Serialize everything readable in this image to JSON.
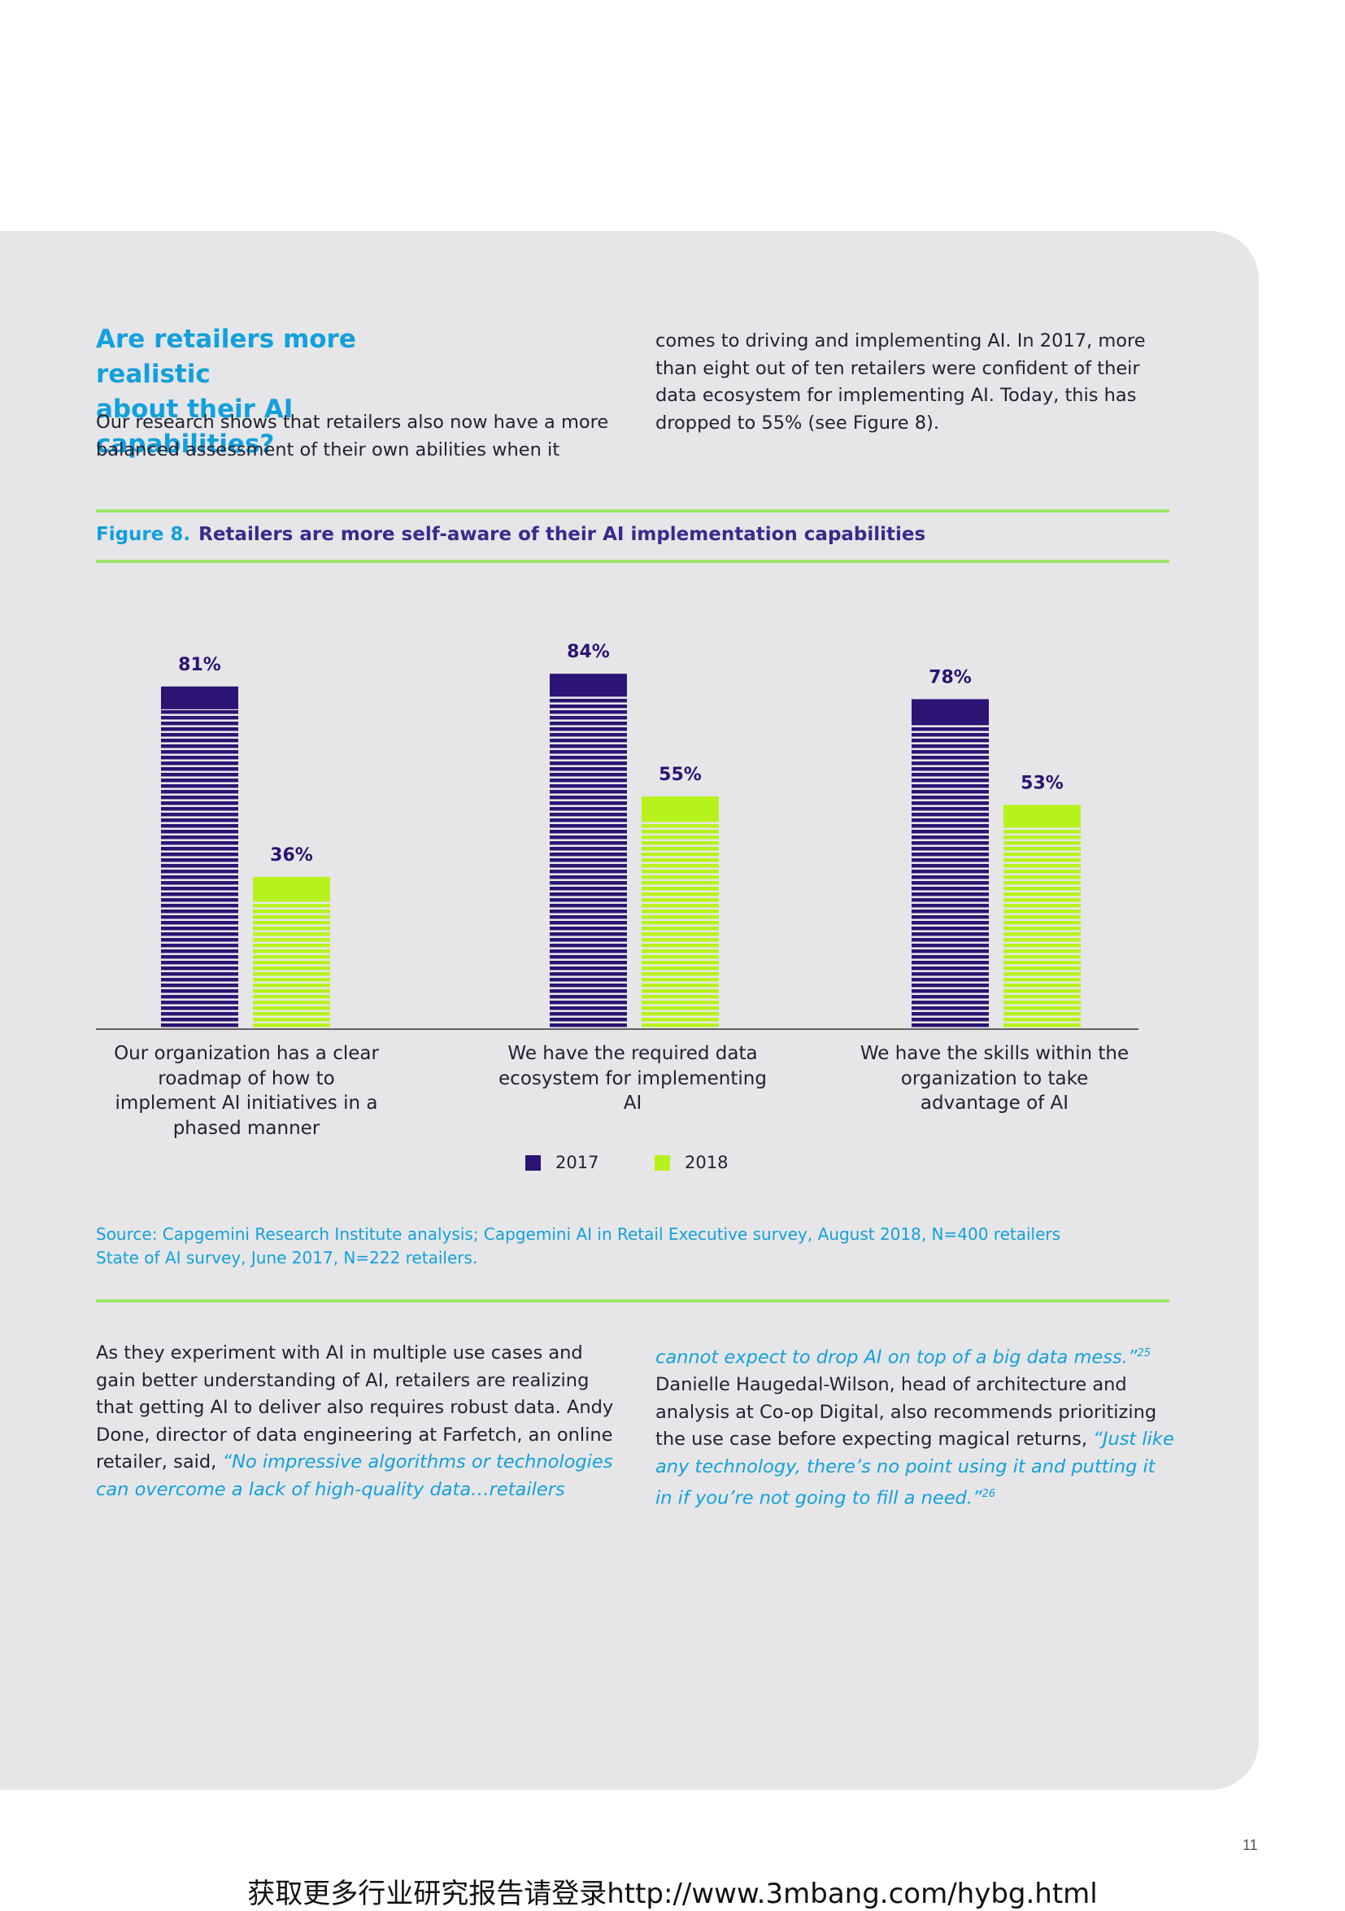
{
  "heading": {
    "line1": "Are retailers more realistic",
    "line2": "about their AI capabilities?"
  },
  "intro": {
    "left": "Our research shows that retailers also now have a more balanced assessment of their own abilities when it",
    "right": "comes to driving and implementing AI. In 2017, more than eight out of ten retailers were confident of their data ecosystem for implementing AI. Today, this has dropped to 55% (see Figure 8)."
  },
  "figure": {
    "label": "Figure 8.",
    "title": "Retailers are more self-aware of their AI implementation capabilities"
  },
  "chart_data": {
    "type": "bar",
    "categories": [
      "Our organization has a clear roadmap of how to implement AI initiatives in a phased manner",
      "We have the required data ecosystem for implementing AI",
      "We have the skills within the organization to take advantage of AI"
    ],
    "series": [
      {
        "name": "2017",
        "values": [
          81,
          84,
          78
        ],
        "color": "#2b1473"
      },
      {
        "name": "2018",
        "values": [
          36,
          55,
          53
        ],
        "color": "#b6f21c"
      }
    ],
    "value_labels": [
      [
        "81%",
        "84%",
        "78%"
      ],
      [
        "36%",
        "55%",
        "53%"
      ]
    ],
    "ylim": [
      0,
      100
    ],
    "unit": "%",
    "legend": "bottom-center",
    "grid": false
  },
  "source": {
    "line1": "Source: Capgemini Research Institute analysis; Capgemini AI in Retail Executive survey, August 2018, N=400 retailers",
    "line2": "State of AI survey, June 2017, N=222 retailers."
  },
  "body": {
    "left_text": "As they experiment with AI in multiple use cases and gain better understanding of AI, retailers are realizing that getting AI to deliver also requires robust data. Andy Done, director of data engineering at Farfetch, an online retailer, said, ",
    "left_quote": "“No impressive algorithms or technologies can overcome a lack of high-quality data…retailers",
    "right_quote1": "cannot expect to drop AI on top of a big data mess.”",
    "right_sup1": "25",
    "right_text": " Danielle Haugedal-Wilson, head of architecture and analysis at Co-op Digital, also recommends prioritizing the use case before expecting magical returns, ",
    "right_quote2": "“Just like any technology, there’s no point using it and putting it in if you’re not going to fill a need.”",
    "right_sup2": "26"
  },
  "page_number": "11",
  "footer": "获取更多行业研究报告请登录http://www.3mbang.com/hybg.html"
}
